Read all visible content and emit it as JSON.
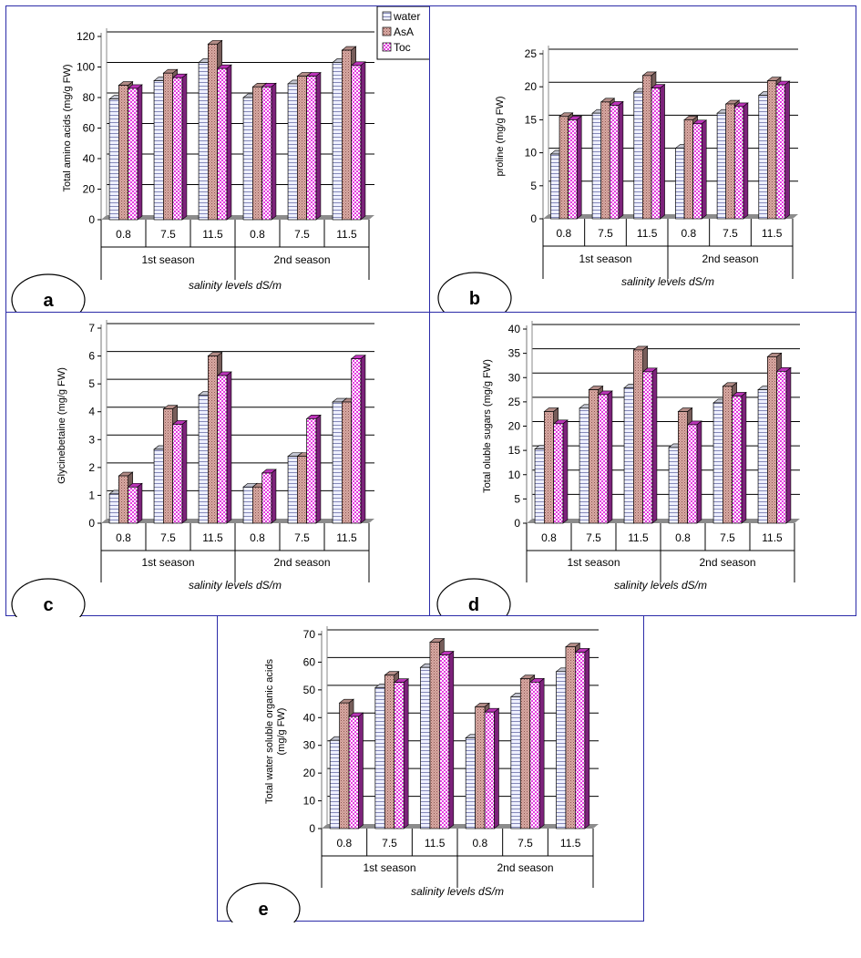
{
  "legend": {
    "series": [
      {
        "name": "water",
        "color": "#eef0ff"
      },
      {
        "name": "AsA",
        "color": "#d9a9a3"
      },
      {
        "name": "Toc",
        "color": "#e43ee0"
      }
    ]
  },
  "chart_data": [
    {
      "id": "a",
      "panel_label": "a",
      "type": "bar",
      "ylabel": "Total amino acids (mg/g FW)",
      "xlabel": "salinity levels dS/m",
      "ylim": [
        0,
        120
      ],
      "yticks": [
        0,
        20,
        40,
        60,
        80,
        100,
        120
      ],
      "categories": [
        "0.8",
        "7.5",
        "11.5",
        "0.8",
        "7.5",
        "11.5"
      ],
      "groups": [
        "1st season",
        "2nd season"
      ],
      "series": [
        {
          "name": "water",
          "values": [
            79,
            91,
            103,
            80,
            89,
            103
          ]
        },
        {
          "name": "AsA",
          "values": [
            88,
            96,
            115,
            87,
            94,
            111
          ]
        },
        {
          "name": "Toc",
          "values": [
            86,
            93,
            99,
            87,
            94,
            101
          ]
        }
      ]
    },
    {
      "id": "b",
      "panel_label": "b",
      "type": "bar",
      "ylabel": "proline (mg/g FW)",
      "xlabel": "salinity levels dS/m",
      "ylim": [
        0,
        25
      ],
      "yticks": [
        0,
        5,
        10,
        15,
        20,
        25
      ],
      "categories": [
        "0.8",
        "7.5",
        "11.5",
        "0.8",
        "7.5",
        "11.5"
      ],
      "groups": [
        "1st season",
        "2nd season"
      ],
      "series": [
        {
          "name": "water",
          "values": [
            9.8,
            16.0,
            19.2,
            10.7,
            16.0,
            18.7
          ]
        },
        {
          "name": "AsA",
          "values": [
            15.5,
            17.7,
            21.7,
            15.0,
            17.4,
            20.9
          ]
        },
        {
          "name": "Toc",
          "values": [
            15.0,
            17.2,
            19.8,
            14.4,
            17.0,
            20.3
          ]
        }
      ]
    },
    {
      "id": "c",
      "panel_label": "c",
      "type": "bar",
      "ylabel": "Glycinebetaine (mg/g FW)",
      "xlabel": "salinity levels dS/m",
      "ylim": [
        0,
        7
      ],
      "yticks": [
        0,
        1,
        2,
        3,
        4,
        5,
        6,
        7
      ],
      "categories": [
        "0.8",
        "7.5",
        "11.5",
        "0.8",
        "7.5",
        "11.5"
      ],
      "groups": [
        "1st season",
        "2nd season"
      ],
      "series": [
        {
          "name": "water",
          "values": [
            1.05,
            2.65,
            4.6,
            1.3,
            2.4,
            4.35
          ]
        },
        {
          "name": "AsA",
          "values": [
            1.7,
            4.1,
            6.0,
            1.3,
            2.4,
            4.35
          ]
        },
        {
          "name": "Toc",
          "values": [
            1.3,
            3.55,
            5.3,
            1.8,
            3.75,
            5.9
          ]
        }
      ]
    },
    {
      "id": "d",
      "panel_label": "d",
      "type": "bar",
      "ylabel": "Total oluble sugars (mg/g FW)",
      "xlabel": "salinity levels dS/m",
      "ylim": [
        0,
        40
      ],
      "yticks": [
        0,
        5,
        10,
        15,
        20,
        25,
        30,
        35,
        40
      ],
      "categories": [
        "0.8",
        "7.5",
        "11.5",
        "0.8",
        "7.5",
        "11.5"
      ],
      "groups": [
        "1st season",
        "2nd season"
      ],
      "series": [
        {
          "name": "water",
          "values": [
            15.3,
            23.7,
            27.9,
            15.6,
            24.8,
            27.5
          ]
        },
        {
          "name": "AsA",
          "values": [
            23.0,
            27.5,
            35.7,
            23.0,
            28.2,
            34.3
          ]
        },
        {
          "name": "Toc",
          "values": [
            20.5,
            26.5,
            31.2,
            20.3,
            26.2,
            31.3
          ]
        }
      ]
    },
    {
      "id": "e",
      "panel_label": "e",
      "type": "bar",
      "ylabel": "Total water soluble organic acids (mg/g FW)",
      "xlabel": "salinity levels dS/m",
      "ylim": [
        0,
        70
      ],
      "yticks": [
        0,
        10,
        20,
        30,
        40,
        50,
        60,
        70
      ],
      "categories": [
        "0.8",
        "7.5",
        "11.5",
        "0.8",
        "7.5",
        "11.5"
      ],
      "groups": [
        "1st season",
        "2nd season"
      ],
      "series": [
        {
          "name": "water",
          "values": [
            31.8,
            50.8,
            58.1,
            32.7,
            47.5,
            56.6
          ]
        },
        {
          "name": "AsA",
          "values": [
            45.3,
            55.3,
            67.2,
            43.9,
            54.0,
            65.5
          ]
        },
        {
          "name": "Toc",
          "values": [
            40.4,
            52.7,
            62.6,
            42.0,
            52.8,
            63.6
          ]
        }
      ]
    }
  ]
}
